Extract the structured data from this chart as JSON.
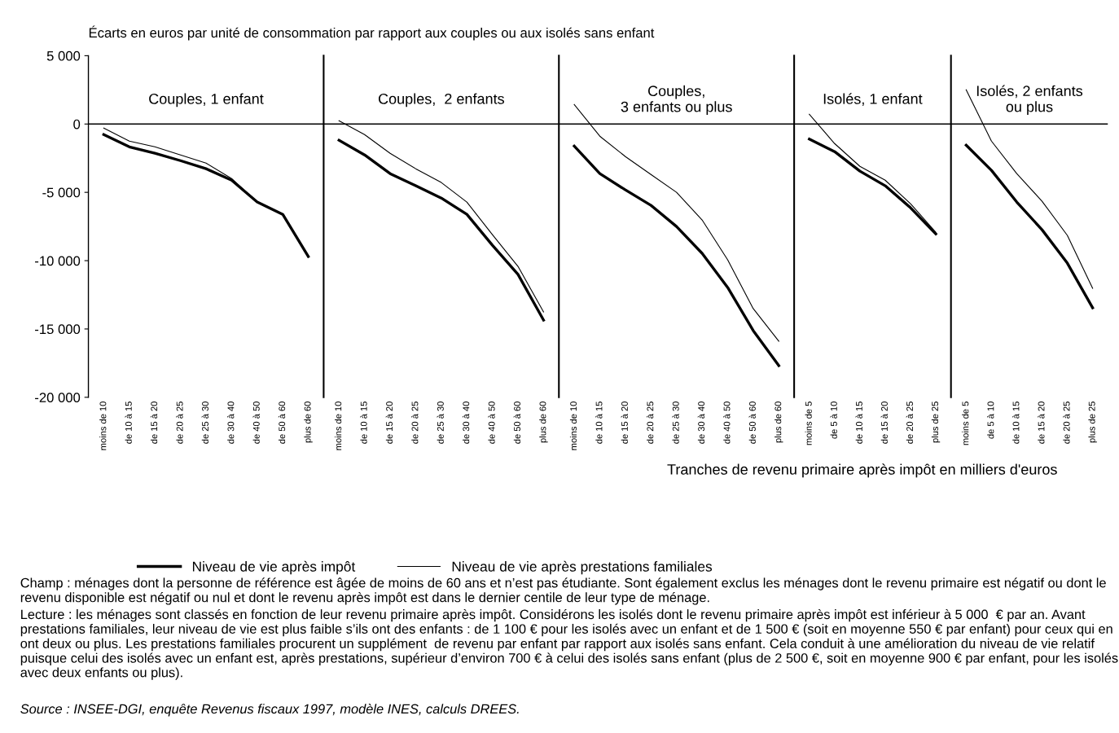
{
  "chart_data": [
    {
      "type": "line",
      "title": "Couples, 1 enfant",
      "annotations": [
        "Écarts en euros par unité de consommation par rapport aux couples ou aux isolés sans enfant",
        "Champ : ménages dont la personne de référence est âgée de moins de 60 ans et n’est pas étudiante. Sont également exclus les ménages dont le revenu primaire est négatif ou dont le revenu disponible est négatif ou nul et dont le revenu après impôt est dans le dernier centile de leur type de ménage.",
        "Lecture : les ménages sont classés en fonction de leur revenu primaire après impôt. Considérons les isolés dont le revenu primaire après impôt est inférieur à 5 000  € par an. Avant prestations familiales, leur niveau de vie est plus faible s’ils ont des enfants : de 1 100 € pour les isolés avec un enfant et de 1 500 € (soit en moyenne 550 € par enfant) pour ceux qui en ont deux ou plus. Les prestations familiales procurent un supplément  de revenu par enfant par rapport aux isolés sans enfant. Cela conduit à une amélioration du niveau de vie relatif puisque celui des isolés avec un enfant est, après prestations, supérieur d’environ 700 € à celui des isolés sans enfant (plus de 2 500 €, soit en moyenne 900 € par enfant, pour les isolés avec deux enfants ou plus).",
        "Source : INSEE-DGI, enquête Revenus fiscaux 1997, modèle INES, calculs DREES."
      ],
      "categories": [
        "moins de 10",
        "de 10 à 15",
        "de 15 à 20",
        "de 20 à 25",
        "de 25 à 30",
        "de 30 à 40",
        "de 40 à 50",
        "de 50 à 60",
        "plus de 60"
      ],
      "series": [
        {
          "name": "Niveau de vie après impôt",
          "color": "#000000",
          "values": [
            -770,
            -1670,
            -2140,
            -2680,
            -3270,
            -4110,
            -5710,
            -6610,
            -9700
          ]
        },
        {
          "name": "Niveau de vie après prestations familiales",
          "color": "#000000",
          "values": [
            -300,
            -1250,
            -1670,
            -2260,
            -2860,
            -3990,
            -5710,
            -6610,
            -9700
          ]
        }
      ],
      "ylim": [
        -20000,
        5000
      ],
      "yticks": [
        {
          "value": 5000,
          "label": "5 000"
        },
        0,
        {
          "value": -5000,
          "label": "-5 000"
        },
        {
          "value": -10000,
          "label": "-10 000"
        },
        {
          "value": -15000,
          "label": "-15 000"
        },
        {
          "value": -20000,
          "label": "-20 000"
        }
      ],
      "ref_lines": [
        {
          "axis": "y",
          "value": 0,
          "color": "#000000"
        }
      ],
      "legend": "bottom",
      "grid": false
    },
    {
      "type": "line",
      "title": "Couples,  2 enfants",
      "categories": [
        "moins de 10",
        "de 10 à 15",
        "de 15 à 20",
        "de 20 à 25",
        "de 25 à 30",
        "de 30 à 40",
        "de 40 à 50",
        "de 50 à 60",
        "plus de 60"
      ],
      "series": [
        {
          "color": "#000000",
          "values": [
            -1190,
            -2260,
            -3630,
            -4520,
            -5420,
            -6610,
            -8870,
            -11000,
            -14350
          ]
        },
        {
          "color": "#000000",
          "values": [
            240,
            -770,
            -2140,
            -3270,
            -4280,
            -5710,
            -8100,
            -10420,
            -13750
          ]
        }
      ],
      "ylim": [
        -20000,
        5000
      ],
      "tick_labels": "x",
      "ref_lines": [
        {
          "axis": "y",
          "value": 0,
          "color": "#000000"
        }
      ],
      "grid": false
    },
    {
      "type": "line",
      "title": "Couples,\n3 enfants ou plus",
      "categories": [
        "moins de 10",
        "de 10 à 15",
        "de 15 à 20",
        "de 20 à 25",
        "de 25 à 30",
        "de 30 à 40",
        "de 40 à 50",
        "de 50 à 60",
        "plus de 60"
      ],
      "series": [
        {
          "color": "#000000",
          "values": [
            -1610,
            -3630,
            -4820,
            -5950,
            -7500,
            -9460,
            -11960,
            -15120,
            -17680
          ]
        },
        {
          "color": "#000000",
          "values": [
            1430,
            -890,
            -2380,
            -3690,
            -5000,
            -7020,
            -9940,
            -13510,
            -15890
          ]
        }
      ],
      "ylim": [
        -20000,
        5000
      ],
      "tick_labels": "x",
      "ref_lines": [
        {
          "axis": "y",
          "value": 0,
          "color": "#000000"
        }
      ],
      "grid": false
    },
    {
      "type": "line",
      "title": "Isolés, 1 enfant",
      "categories": [
        "moins de 5",
        "de 5 à 10",
        "de 10 à 15",
        "de 15 à 20",
        "de 20 à 25",
        "plus de 25"
      ],
      "series": [
        {
          "color": "#000000",
          "values": [
            -1100,
            -2020,
            -3450,
            -4520,
            -6130,
            -8040
          ]
        },
        {
          "color": "#000000",
          "values": [
            710,
            -1430,
            -3100,
            -4110,
            -5830,
            -7920
          ]
        }
      ],
      "ylim": [
        -20000,
        5000
      ],
      "tick_labels": "x",
      "ref_lines": [
        {
          "axis": "y",
          "value": 0,
          "color": "#000000"
        }
      ],
      "grid": false
    },
    {
      "type": "line",
      "title": "Isolés, 2 enfants\nou plus",
      "xlabel": "Tranches de revenu primaire après impôt en milliers d'euros",
      "categories": [
        "moins de 5",
        "de 5 à 10",
        "de 10 à 15",
        "de 15 à 20",
        "de 20 à 25",
        "plus de 25"
      ],
      "series": [
        {
          "color": "#000000",
          "values": [
            -1550,
            -3390,
            -5710,
            -7740,
            -10180,
            -13450
          ]
        },
        {
          "color": "#000000",
          "values": [
            2500,
            -1250,
            -3630,
            -5650,
            -8150,
            -12020
          ]
        }
      ],
      "ylim": [
        -20000,
        5000
      ],
      "tick_labels": "x",
      "ref_lines": [
        {
          "axis": "y",
          "value": 0,
          "color": "#000000"
        }
      ],
      "grid": false
    }
  ]
}
